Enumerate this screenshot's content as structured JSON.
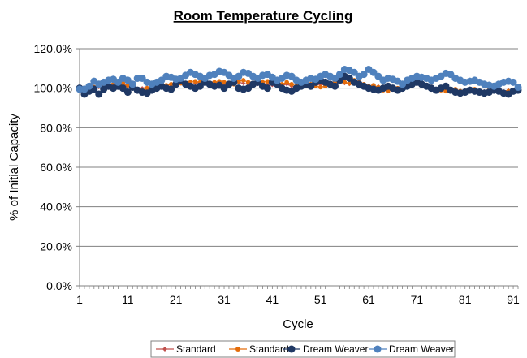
{
  "chart_data": {
    "type": "line",
    "title": "Room Temperature Cycling",
    "xlabel": "Cycle",
    "ylabel": "% of Initial Capacity",
    "ylim": [
      0,
      1.2
    ],
    "xlim": [
      1,
      92
    ],
    "grid": "horizontal",
    "legend_position": "bottom",
    "y_ticks": [
      "0.0%",
      "20.0%",
      "40.0%",
      "60.0%",
      "80.0%",
      "100.0%",
      "120.0%"
    ],
    "x_ticks": [
      "1",
      "11",
      "21",
      "31",
      "41",
      "51",
      "61",
      "71",
      "81",
      "91"
    ],
    "series": [
      {
        "name": "Standard",
        "color": "#c0504d",
        "marker": "diamond-small",
        "x": [
          1,
          2,
          3,
          4,
          5,
          6,
          7,
          8,
          9,
          10,
          11,
          12,
          13,
          14,
          15,
          16,
          17,
          18,
          19,
          20,
          21,
          22,
          23,
          24,
          25,
          26,
          27,
          28,
          29,
          30,
          31,
          32,
          33,
          34,
          35,
          36,
          37,
          38,
          39,
          40,
          41,
          42,
          43,
          44,
          45,
          46,
          47,
          48,
          49,
          50,
          51,
          52,
          53,
          54,
          55,
          56,
          57,
          58,
          59,
          60,
          61,
          62,
          63,
          64,
          65,
          66,
          67,
          68,
          69,
          70,
          71,
          72,
          73,
          74,
          75,
          76,
          77,
          78,
          79,
          80,
          81,
          82,
          83,
          84,
          85,
          86,
          87,
          88,
          89,
          90,
          91,
          92
        ],
        "values": [
          1.0,
          0.99,
          0.995,
          1.0,
          1.005,
          1.01,
          1.01,
          1.015,
          1.01,
          1.02,
          1.01,
          1.0,
          0.995,
          1.0,
          1.005,
          1.01,
          1.02,
          1.015,
          1.01,
          1.02,
          1.02,
          1.025,
          1.02,
          1.02,
          1.025,
          1.03,
          1.025,
          1.02,
          1.03,
          1.025,
          1.02,
          1.015,
          1.02,
          1.03,
          1.025,
          1.02,
          1.015,
          1.02,
          1.025,
          1.02,
          1.015,
          1.01,
          1.015,
          1.02,
          1.01,
          1.005,
          1.01,
          1.015,
          1.01,
          1.015,
          1.02,
          1.015,
          1.02,
          1.025,
          1.03,
          1.025,
          1.02,
          1.03,
          1.02,
          1.01,
          1.0,
          1.005,
          1.01,
          1.0,
          0.99,
          0.995,
          1.0,
          1.005,
          1.01,
          1.015,
          1.02,
          1.01,
          1.005,
          1.0,
          0.995,
          0.99,
          0.985,
          0.99,
          0.985,
          0.98,
          0.985,
          0.99,
          0.985,
          0.98,
          0.985,
          0.99,
          0.985,
          0.98,
          0.985,
          0.99,
          0.985,
          0.99
        ]
      },
      {
        "name": "Standard",
        "color": "#e46c0a",
        "marker": "circle-small",
        "x": [
          1,
          2,
          3,
          4,
          5,
          6,
          7,
          8,
          9,
          10,
          11,
          12,
          13,
          14,
          15,
          16,
          17,
          18,
          19,
          20,
          21,
          22,
          23,
          24,
          25,
          26,
          27,
          28,
          29,
          30,
          31,
          32,
          33,
          34,
          35,
          36,
          37,
          38,
          39,
          40,
          41,
          42,
          43,
          44,
          45,
          46,
          47,
          48,
          49,
          50,
          51,
          52,
          53,
          54,
          55,
          56,
          57,
          58,
          59,
          60,
          61,
          62,
          63,
          64,
          65,
          66,
          67,
          68,
          69,
          70,
          71,
          72,
          73,
          74,
          75,
          76,
          77,
          78,
          79,
          80,
          81,
          82,
          83,
          84,
          85,
          86,
          87,
          88,
          89,
          90,
          91,
          92
        ],
        "values": [
          0.995,
          0.99,
          1.0,
          1.005,
          1.01,
          1.015,
          1.01,
          1.02,
          1.015,
          1.025,
          1.015,
          1.005,
          0.995,
          0.99,
          1.0,
          1.01,
          1.02,
          1.025,
          1.015,
          1.02,
          1.03,
          1.025,
          1.02,
          1.03,
          1.035,
          1.03,
          1.025,
          1.02,
          1.03,
          1.035,
          1.03,
          1.025,
          1.02,
          1.035,
          1.04,
          1.03,
          1.02,
          1.025,
          1.03,
          1.035,
          1.025,
          1.015,
          1.02,
          1.03,
          1.02,
          1.01,
          1.005,
          1.015,
          1.02,
          1.01,
          1.005,
          1.01,
          1.02,
          1.03,
          1.035,
          1.03,
          1.025,
          1.04,
          1.03,
          1.02,
          1.01,
          1.015,
          1.005,
          0.99,
          0.985,
          0.995,
          1.0,
          1.01,
          1.02,
          1.03,
          1.035,
          1.02,
          1.01,
          1.0,
          0.995,
          0.99,
          0.985,
          0.99,
          0.995,
          0.985,
          0.98,
          0.99,
          0.995,
          0.985,
          0.98,
          0.99,
          0.995,
          0.985,
          0.98,
          0.985,
          0.99,
          0.995
        ]
      },
      {
        "name": "Dream Weaver",
        "color": "#1f3864",
        "marker": "circle",
        "x": [
          1,
          2,
          3,
          4,
          5,
          6,
          7,
          8,
          9,
          10,
          11,
          12,
          13,
          14,
          15,
          16,
          17,
          18,
          19,
          20,
          21,
          22,
          23,
          24,
          25,
          26,
          27,
          28,
          29,
          30,
          31,
          32,
          33,
          34,
          35,
          36,
          37,
          38,
          39,
          40,
          41,
          42,
          43,
          44,
          45,
          46,
          47,
          48,
          49,
          50,
          51,
          52,
          53,
          54,
          55,
          56,
          57,
          58,
          59,
          60,
          61,
          62,
          63,
          64,
          65,
          66,
          67,
          68,
          69,
          70,
          71,
          72,
          73,
          74,
          75,
          76,
          77,
          78,
          79,
          80,
          81,
          82,
          83,
          84,
          85,
          86,
          87,
          88,
          89,
          90,
          91,
          92
        ],
        "values": [
          1.0,
          0.97,
          0.985,
          0.995,
          0.97,
          0.995,
          1.01,
          1.0,
          1.01,
          1.0,
          0.98,
          1.005,
          0.99,
          0.98,
          0.975,
          0.99,
          1.0,
          1.01,
          1.0,
          0.995,
          1.02,
          1.04,
          1.02,
          1.01,
          1.0,
          1.01,
          1.03,
          1.02,
          1.01,
          1.015,
          1.0,
          1.02,
          1.03,
          1.0,
          0.995,
          1.0,
          1.02,
          1.03,
          1.01,
          1.0,
          1.03,
          1.02,
          1.0,
          0.99,
          0.985,
          1.0,
          1.01,
          1.02,
          1.01,
          1.03,
          1.04,
          1.03,
          1.02,
          1.01,
          1.04,
          1.06,
          1.05,
          1.03,
          1.02,
          1.01,
          1.0,
          0.995,
          0.99,
          1.0,
          1.01,
          1.0,
          0.99,
          1.0,
          1.01,
          1.02,
          1.03,
          1.02,
          1.01,
          1.0,
          0.99,
          1.0,
          1.01,
          0.99,
          0.98,
          0.975,
          0.98,
          0.99,
          0.985,
          0.98,
          0.975,
          0.98,
          0.99,
          0.985,
          0.975,
          0.97,
          0.985,
          0.99
        ]
      },
      {
        "name": "Dream Weaver",
        "color": "#4f81bd",
        "marker": "circle",
        "x": [
          1,
          2,
          3,
          4,
          5,
          6,
          7,
          8,
          9,
          10,
          11,
          12,
          13,
          14,
          15,
          16,
          17,
          18,
          19,
          20,
          21,
          22,
          23,
          24,
          25,
          26,
          27,
          28,
          29,
          30,
          31,
          32,
          33,
          34,
          35,
          36,
          37,
          38,
          39,
          40,
          41,
          42,
          43,
          44,
          45,
          46,
          47,
          48,
          49,
          50,
          51,
          52,
          53,
          54,
          55,
          56,
          57,
          58,
          59,
          60,
          61,
          62,
          63,
          64,
          65,
          66,
          67,
          68,
          69,
          70,
          71,
          72,
          73,
          74,
          75,
          76,
          77,
          78,
          79,
          80,
          81,
          82,
          83,
          84,
          85,
          86,
          87,
          88,
          89,
          90,
          91,
          92
        ],
        "values": [
          0.995,
          0.995,
          1.01,
          1.035,
          1.02,
          1.03,
          1.04,
          1.045,
          1.03,
          1.05,
          1.04,
          1.02,
          1.05,
          1.05,
          1.03,
          1.02,
          1.03,
          1.04,
          1.06,
          1.055,
          1.045,
          1.05,
          1.065,
          1.08,
          1.07,
          1.06,
          1.05,
          1.065,
          1.07,
          1.085,
          1.08,
          1.065,
          1.05,
          1.06,
          1.08,
          1.075,
          1.06,
          1.05,
          1.065,
          1.07,
          1.055,
          1.04,
          1.05,
          1.065,
          1.06,
          1.04,
          1.03,
          1.04,
          1.05,
          1.045,
          1.06,
          1.07,
          1.06,
          1.05,
          1.07,
          1.095,
          1.09,
          1.08,
          1.06,
          1.07,
          1.095,
          1.08,
          1.06,
          1.04,
          1.05,
          1.045,
          1.035,
          1.02,
          1.04,
          1.05,
          1.06,
          1.055,
          1.05,
          1.04,
          1.05,
          1.06,
          1.075,
          1.07,
          1.05,
          1.04,
          1.03,
          1.035,
          1.04,
          1.03,
          1.02,
          1.015,
          1.01,
          1.02,
          1.03,
          1.035,
          1.03,
          1.005
        ]
      }
    ]
  }
}
